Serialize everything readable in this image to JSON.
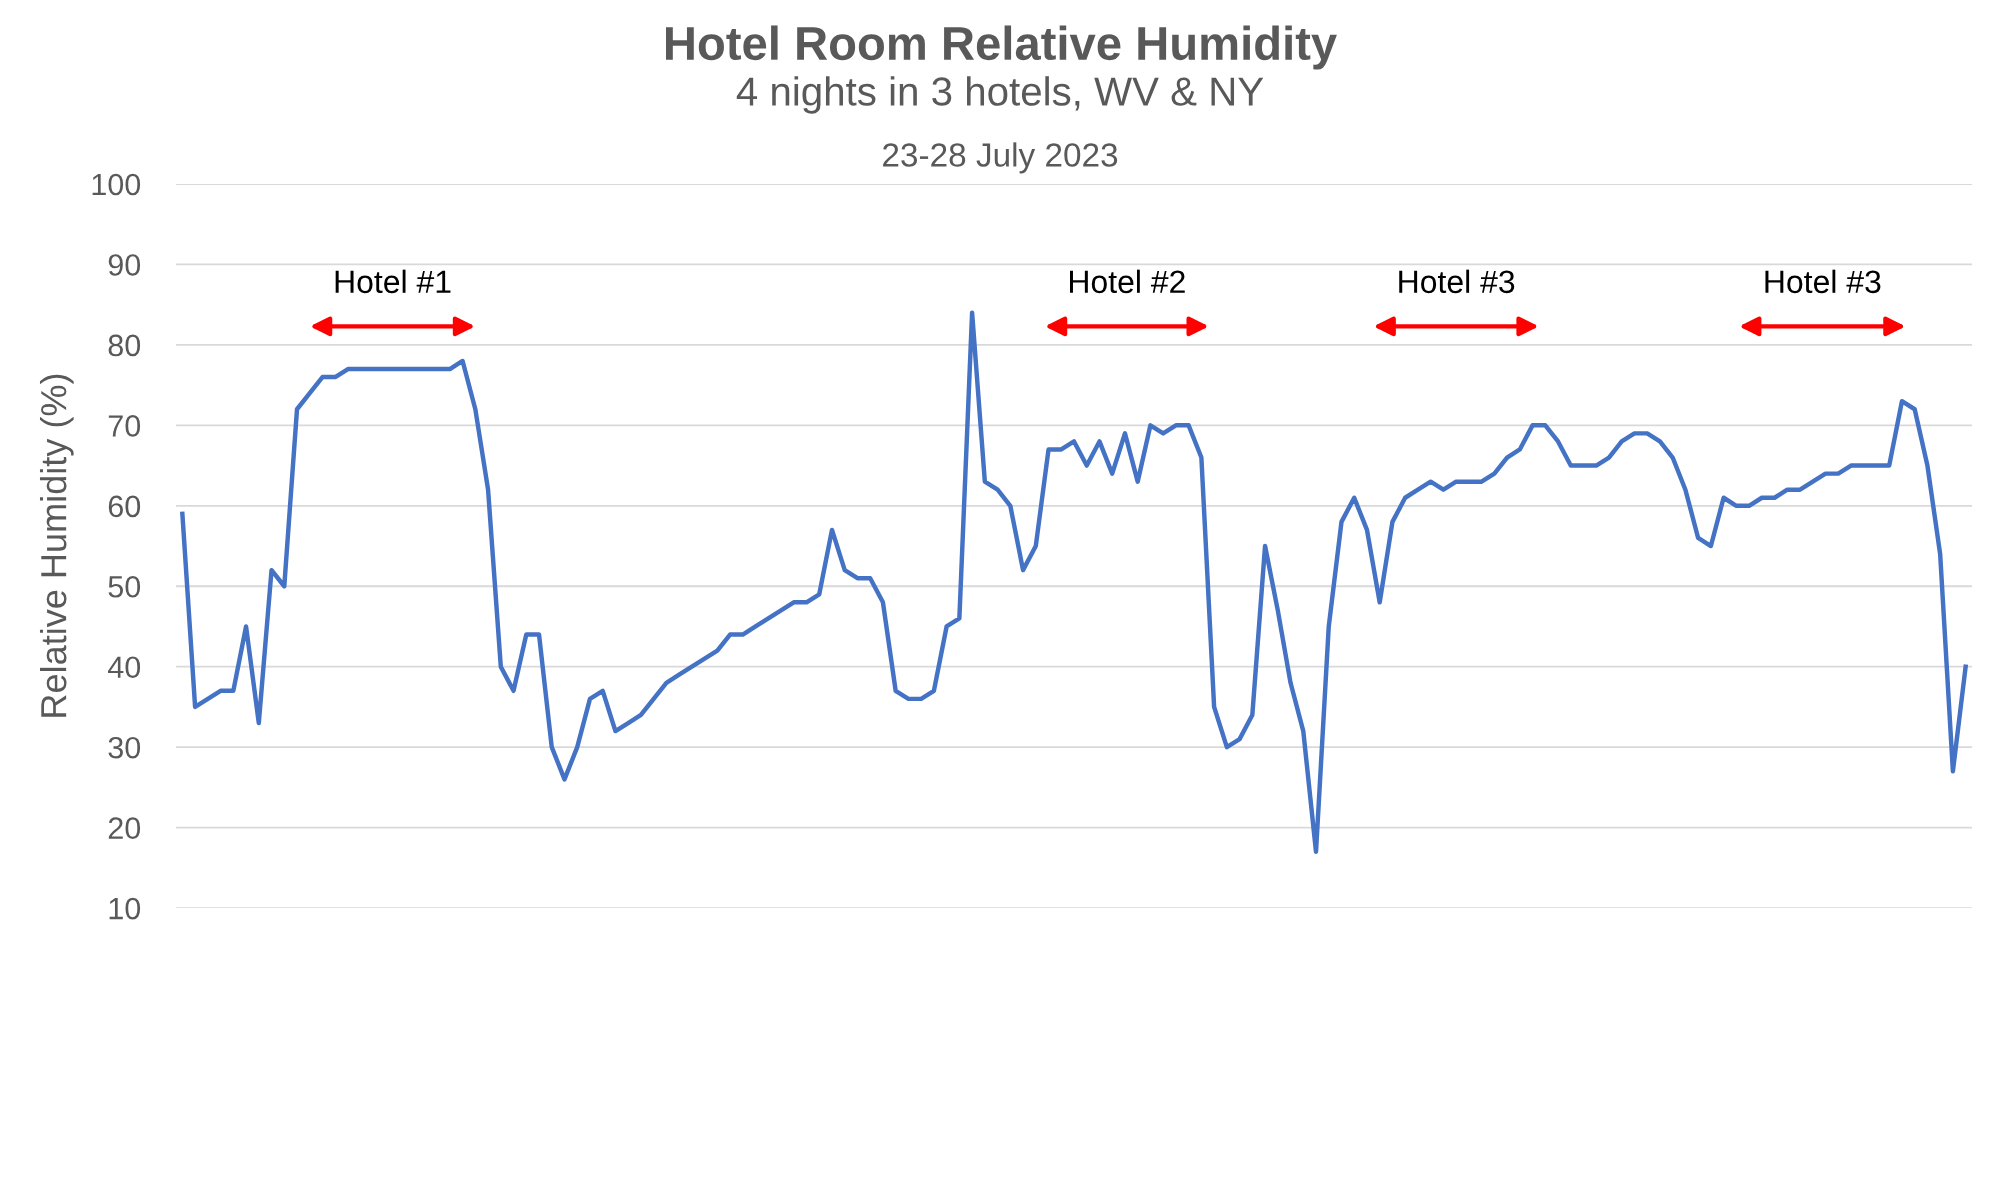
{
  "chart_data": {
    "type": "line",
    "title": "Hotel Room Relative Humidity",
    "subtitle": "4 nights in 3 hotels, WV & NY",
    "annotations": [
      "23-28 July 2023",
      "Hotel #1",
      "Hotel #2",
      "Hotel #3",
      "Hotel #3"
    ],
    "ylabel": "Relative Humidity (%)",
    "categories": [
      null,
      null,
      null,
      null,
      null,
      null,
      null,
      null,
      null,
      null,
      null,
      null,
      null,
      null,
      null,
      null,
      null,
      null,
      null,
      null,
      null,
      null,
      null,
      null,
      null,
      null,
      null,
      null,
      null,
      null,
      null,
      null,
      null,
      null,
      null,
      null,
      null,
      null,
      null,
      null,
      null,
      null,
      null,
      null,
      null,
      null,
      null,
      null,
      null,
      null,
      null,
      null,
      null,
      null,
      null,
      null,
      null,
      null,
      null,
      null,
      null,
      null,
      null,
      null,
      null,
      null,
      null,
      null,
      null,
      null,
      null,
      null,
      null,
      null,
      null,
      null,
      null,
      null,
      null,
      null,
      null,
      null,
      null,
      null,
      null,
      null,
      null,
      null,
      null,
      null,
      null,
      null,
      null,
      null,
      null,
      null,
      null,
      null,
      null,
      null,
      null,
      null,
      null,
      null,
      null,
      null,
      null,
      null,
      null,
      null,
      null,
      null,
      null,
      null,
      null,
      null,
      null,
      null,
      null,
      null,
      null,
      null,
      null,
      null,
      null,
      null,
      null,
      null,
      null,
      null,
      null,
      null,
      null,
      null,
      null,
      null,
      null,
      null,
      null,
      null,
      null
    ],
    "series": [
      {
        "color": "#4472c4",
        "values": [
          59,
          35,
          36,
          37,
          37,
          45,
          33,
          52,
          50,
          72,
          74,
          76,
          76,
          77,
          77,
          77,
          77,
          77,
          77,
          77,
          77,
          77,
          78,
          72,
          62,
          40,
          37,
          44,
          44,
          30,
          26,
          30,
          36,
          37,
          32,
          33,
          34,
          36,
          38,
          39,
          40,
          41,
          42,
          44,
          44,
          45,
          46,
          47,
          48,
          48,
          49,
          57,
          52,
          51,
          51,
          48,
          37,
          36,
          36,
          37,
          45,
          46,
          84,
          63,
          62,
          60,
          52,
          55,
          67,
          67,
          68,
          65,
          68,
          64,
          69,
          63,
          70,
          69,
          70,
          70,
          66,
          35,
          30,
          31,
          34,
          55,
          47,
          38,
          32,
          17,
          45,
          58,
          61,
          57,
          48,
          58,
          61,
          62,
          63,
          62,
          63,
          63,
          63,
          64,
          66,
          67,
          70,
          70,
          68,
          65,
          65,
          65,
          66,
          68,
          69,
          69,
          68,
          66,
          62,
          56,
          55,
          61,
          60,
          60,
          61,
          61,
          62,
          62,
          63,
          64,
          64,
          65,
          65,
          65,
          65,
          73,
          72,
          65,
          54,
          27,
          40
        ]
      }
    ],
    "ylim": [
      10,
      100
    ],
    "yticks": [
      10,
      20,
      30,
      40,
      50,
      60,
      70,
      80,
      90,
      100
    ],
    "grid": "y",
    "legend": false,
    "line_style": "solid",
    "marker": "none"
  }
}
